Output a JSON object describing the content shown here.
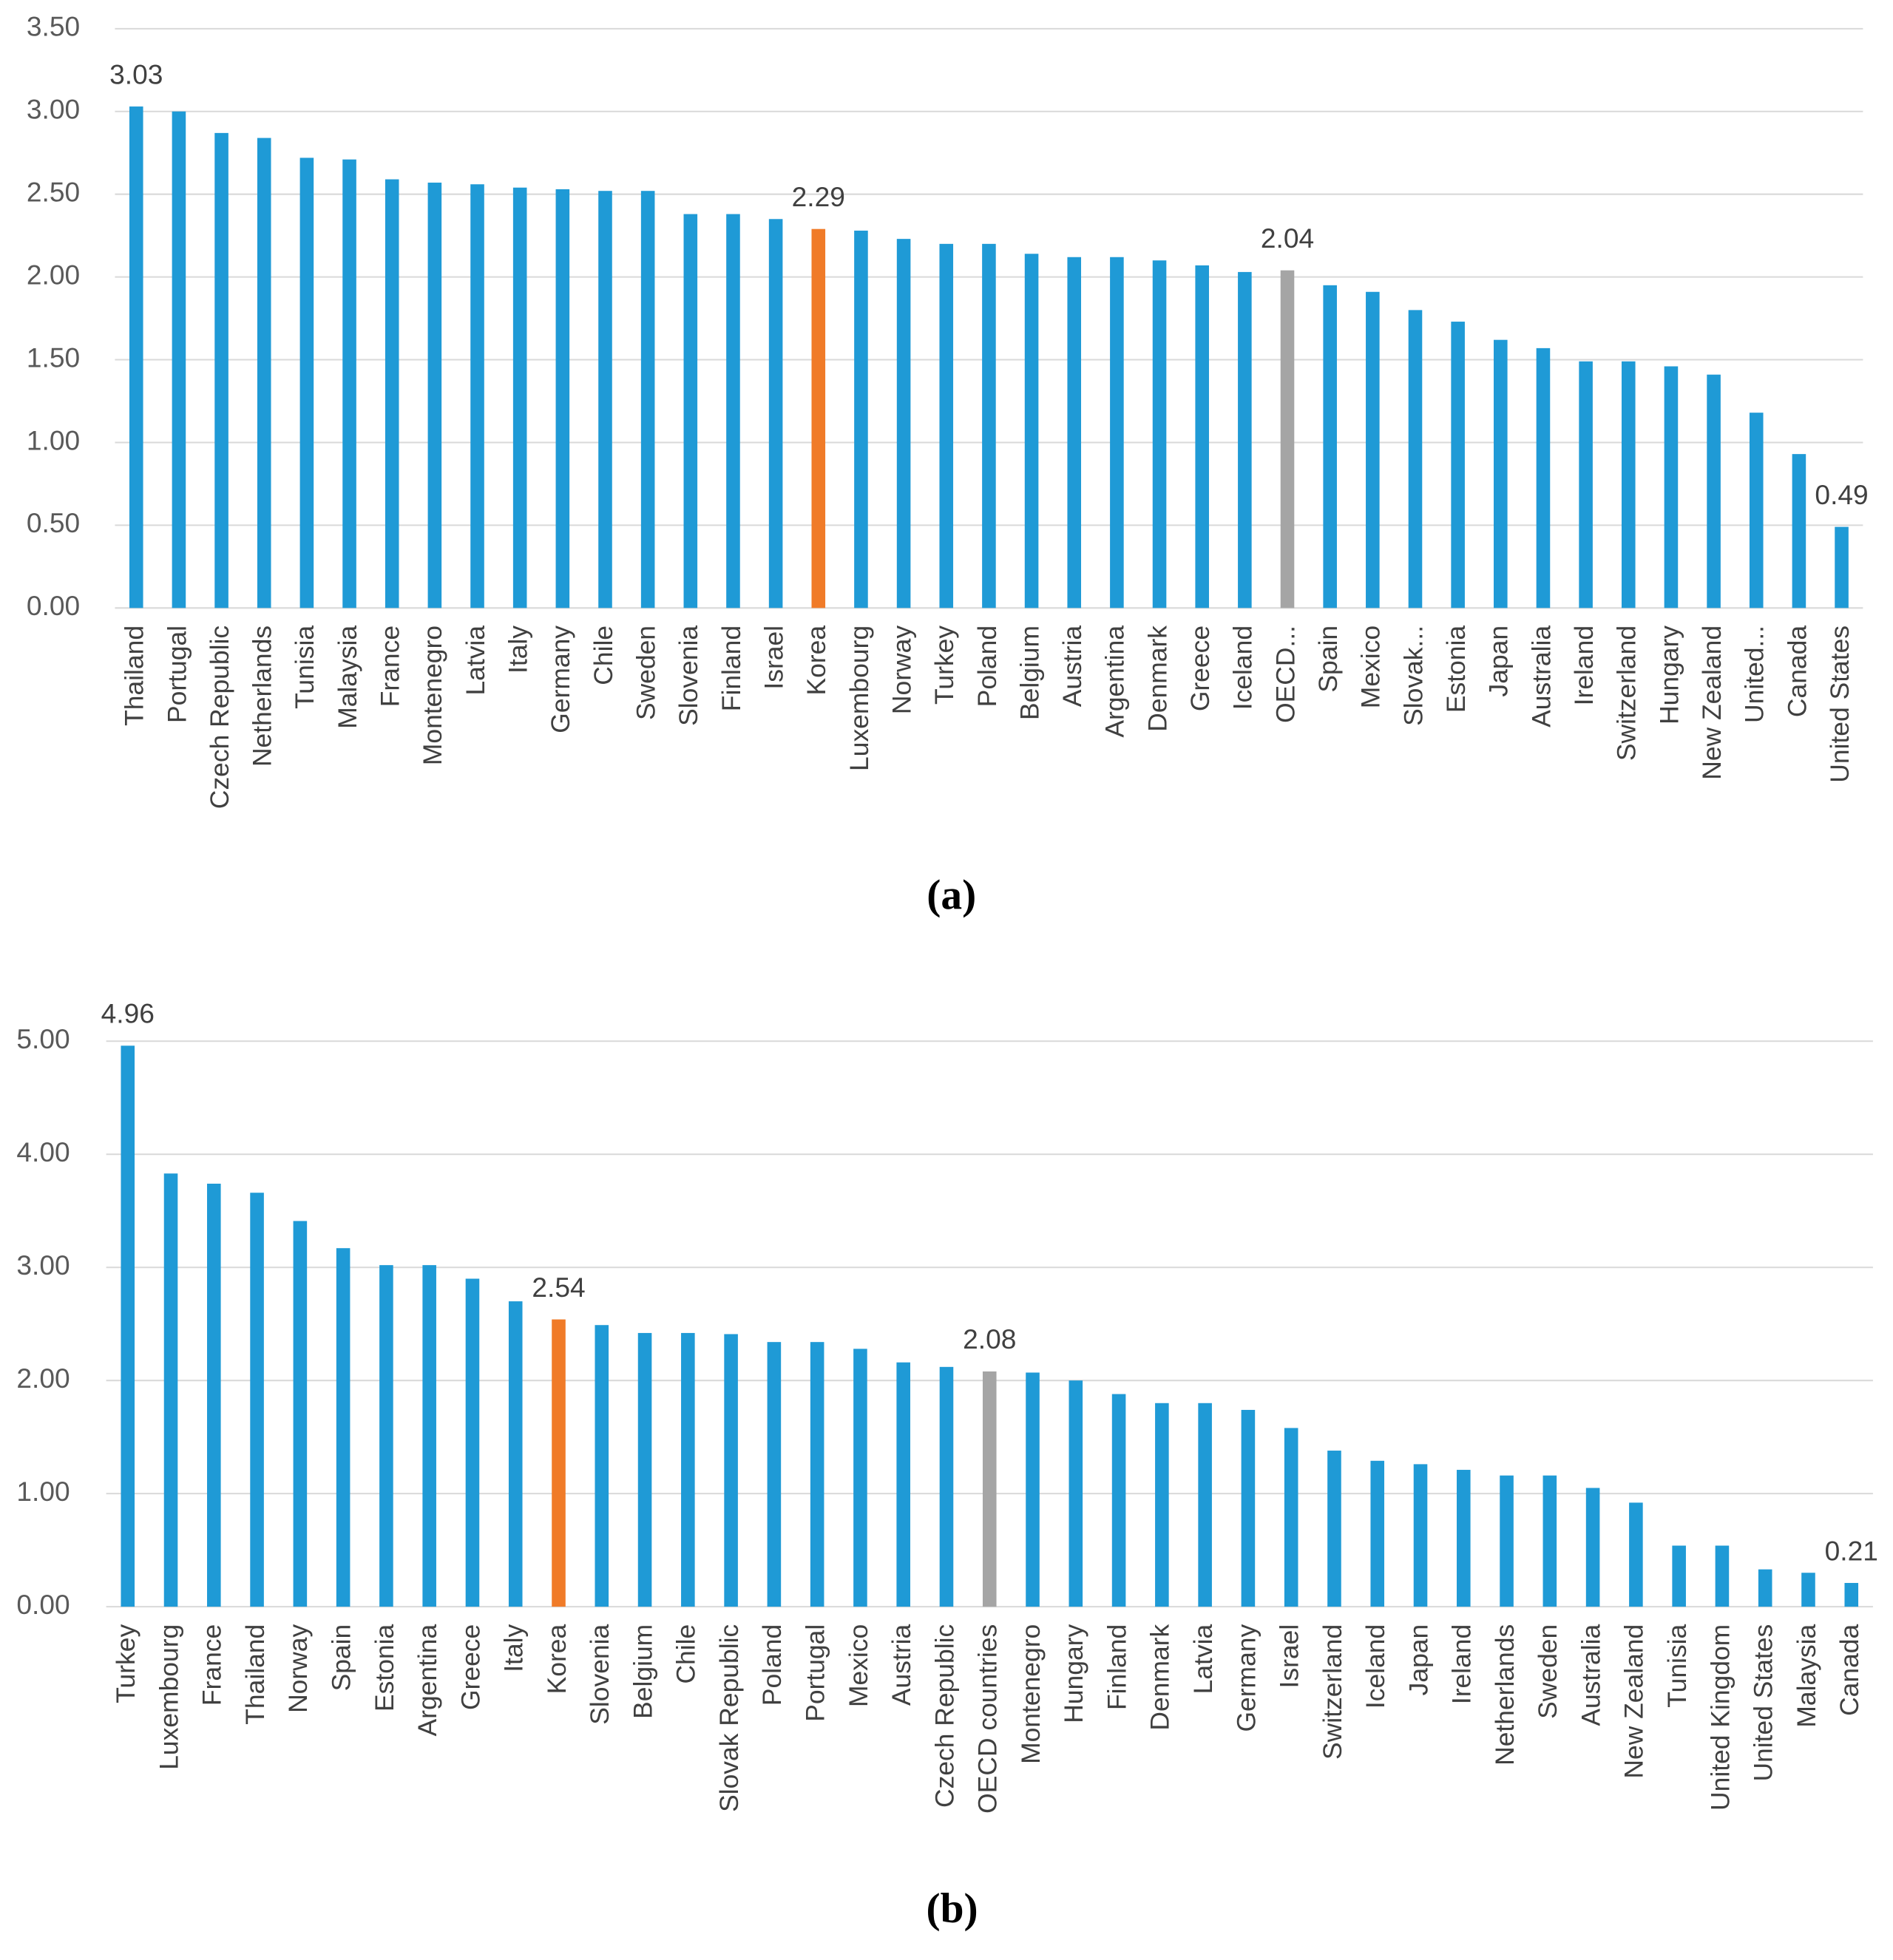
{
  "chart_data": [
    {
      "type": "bar",
      "caption": "(a)",
      "categories": [
        "Thailand",
        "Portugal",
        "Czech Republic",
        "Netherlands",
        "Tunisia",
        "Malaysia",
        "France",
        "Montenegro",
        "Latvia",
        "Italy",
        "Germany",
        "Chile",
        "Sweden",
        "Slovenia",
        "Finland",
        "Israel",
        "Korea",
        "Luxembourg",
        "Norway",
        "Turkey",
        "Poland",
        "Belgium",
        "Austria",
        "Argentina",
        "Denmark",
        "Greece",
        "Iceland",
        "OECD...",
        "Spain",
        "Mexico",
        "Slovak...",
        "Estonia",
        "Japan",
        "Australia",
        "Ireland",
        "Switzerland",
        "Hungary",
        "New Zealand",
        "United...",
        "Canada",
        "United States"
      ],
      "values": [
        3.03,
        3.0,
        2.87,
        2.84,
        2.72,
        2.71,
        2.59,
        2.57,
        2.56,
        2.54,
        2.53,
        2.52,
        2.52,
        2.38,
        2.38,
        2.35,
        2.29,
        2.28,
        2.23,
        2.2,
        2.2,
        2.14,
        2.12,
        2.12,
        2.1,
        2.07,
        2.03,
        2.04,
        1.95,
        1.91,
        1.8,
        1.73,
        1.62,
        1.57,
        1.49,
        1.49,
        1.46,
        1.41,
        1.18,
        0.93,
        0.49
      ],
      "value_labels": [
        "3.03",
        null,
        null,
        null,
        null,
        null,
        null,
        null,
        null,
        null,
        null,
        null,
        null,
        null,
        null,
        null,
        "2.29",
        null,
        null,
        null,
        null,
        null,
        null,
        null,
        null,
        null,
        null,
        "2.04",
        null,
        null,
        null,
        null,
        null,
        null,
        null,
        null,
        null,
        null,
        null,
        null,
        "0.49"
      ],
      "colors": [
        "#1f9ad6",
        "#1f9ad6",
        "#1f9ad6",
        "#1f9ad6",
        "#1f9ad6",
        "#1f9ad6",
        "#1f9ad6",
        "#1f9ad6",
        "#1f9ad6",
        "#1f9ad6",
        "#1f9ad6",
        "#1f9ad6",
        "#1f9ad6",
        "#1f9ad6",
        "#1f9ad6",
        "#1f9ad6",
        "#f07b28",
        "#1f9ad6",
        "#1f9ad6",
        "#1f9ad6",
        "#1f9ad6",
        "#1f9ad6",
        "#1f9ad6",
        "#1f9ad6",
        "#1f9ad6",
        "#1f9ad6",
        "#1f9ad6",
        "#a5a5a5",
        "#1f9ad6",
        "#1f9ad6",
        "#1f9ad6",
        "#1f9ad6",
        "#1f9ad6",
        "#1f9ad6",
        "#1f9ad6",
        "#1f9ad6",
        "#1f9ad6",
        "#1f9ad6",
        "#1f9ad6",
        "#1f9ad6",
        "#1f9ad6"
      ],
      "ylim": [
        0,
        3.5
      ],
      "yticks": [
        {
          "value": 0,
          "label": "0.00"
        },
        {
          "value": 0.5,
          "label": "0.50"
        },
        {
          "value": 1,
          "label": "1.00"
        },
        {
          "value": 1.5,
          "label": "1.50"
        },
        {
          "value": 2,
          "label": "2.00"
        },
        {
          "value": 2.5,
          "label": "2.50"
        },
        {
          "value": 3,
          "label": "3.00"
        },
        {
          "value": 3.5,
          "label": "3.50"
        }
      ],
      "grid": true
    },
    {
      "type": "bar",
      "caption": "(b)",
      "categories": [
        "Turkey",
        "Luxembourg",
        "France",
        "Thailand",
        "Norway",
        "Spain",
        "Estonia",
        "Argentina",
        "Greece",
        "Italy",
        "Korea",
        "Slovenia",
        "Belgium",
        "Chile",
        "Slovak Republic",
        "Poland",
        "Portugal",
        "Mexico",
        "Austria",
        "Czech Republic",
        "OECD countries",
        "Montenegro",
        "Hungary",
        "Finland",
        "Denmark",
        "Latvia",
        "Germany",
        "Israel",
        "Switzerland",
        "Iceland",
        "Japan",
        "Ireland",
        "Netherlands",
        "Sweden",
        "Australia",
        "New Zealand",
        "Tunisia",
        "United Kingdom",
        "United States",
        "Malaysia",
        "Canada"
      ],
      "values": [
        4.96,
        3.83,
        3.74,
        3.66,
        3.41,
        3.17,
        3.02,
        3.02,
        2.9,
        2.7,
        2.54,
        2.49,
        2.42,
        2.42,
        2.41,
        2.34,
        2.34,
        2.28,
        2.16,
        2.12,
        2.08,
        2.07,
        2.0,
        1.88,
        1.8,
        1.8,
        1.74,
        1.58,
        1.38,
        1.29,
        1.26,
        1.21,
        1.16,
        1.16,
        1.05,
        0.92,
        0.54,
        0.54,
        0.33,
        0.3,
        0.21
      ],
      "value_labels": [
        "4.96",
        null,
        null,
        null,
        null,
        null,
        null,
        null,
        null,
        null,
        "2.54",
        null,
        null,
        null,
        null,
        null,
        null,
        null,
        null,
        null,
        "2.08",
        null,
        null,
        null,
        null,
        null,
        null,
        null,
        null,
        null,
        null,
        null,
        null,
        null,
        null,
        null,
        null,
        null,
        null,
        null,
        "0.21"
      ],
      "colors": [
        "#1f9ad6",
        "#1f9ad6",
        "#1f9ad6",
        "#1f9ad6",
        "#1f9ad6",
        "#1f9ad6",
        "#1f9ad6",
        "#1f9ad6",
        "#1f9ad6",
        "#1f9ad6",
        "#f07b28",
        "#1f9ad6",
        "#1f9ad6",
        "#1f9ad6",
        "#1f9ad6",
        "#1f9ad6",
        "#1f9ad6",
        "#1f9ad6",
        "#1f9ad6",
        "#1f9ad6",
        "#a5a5a5",
        "#1f9ad6",
        "#1f9ad6",
        "#1f9ad6",
        "#1f9ad6",
        "#1f9ad6",
        "#1f9ad6",
        "#1f9ad6",
        "#1f9ad6",
        "#1f9ad6",
        "#1f9ad6",
        "#1f9ad6",
        "#1f9ad6",
        "#1f9ad6",
        "#1f9ad6",
        "#1f9ad6",
        "#1f9ad6",
        "#1f9ad6",
        "#1f9ad6",
        "#1f9ad6",
        "#1f9ad6"
      ],
      "ylim": [
        0,
        5
      ],
      "yticks": [
        {
          "value": 0,
          "label": "0.00"
        },
        {
          "value": 1,
          "label": "1.00"
        },
        {
          "value": 2,
          "label": "2.00"
        },
        {
          "value": 3,
          "label": "3.00"
        },
        {
          "value": 4,
          "label": "4.00"
        },
        {
          "value": 5,
          "label": "5.00"
        }
      ],
      "grid": true
    }
  ]
}
